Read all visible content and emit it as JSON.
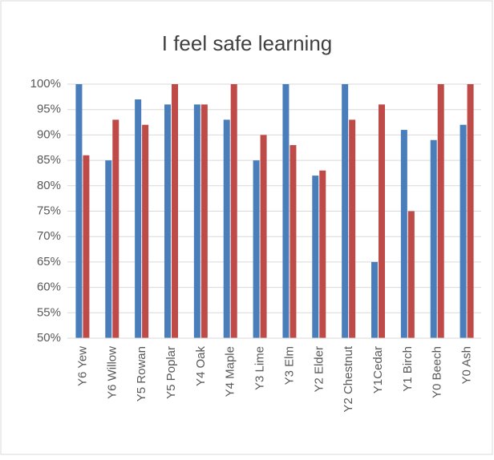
{
  "chart_data": {
    "type": "bar",
    "title": "I feel safe learning",
    "categories": [
      "Y6 Yew",
      "Y6 Willow",
      "Y5 Rowan",
      "Y5 Poplar",
      "Y4 Oak",
      "Y4 Maple",
      "Y3 Lime",
      "Y3 Elm",
      "Y2 Elder",
      "Y2 Chestnut",
      "Y1Cedar",
      "Y1 Birch",
      "Y0 Beech",
      "Y0 Ash"
    ],
    "series": [
      {
        "color": "#4a7ebb",
        "values": [
          100,
          85,
          97,
          96,
          96,
          93,
          85,
          100,
          82,
          100,
          65,
          91,
          89,
          92
        ]
      },
      {
        "color": "#be4b48",
        "values": [
          86,
          93,
          92,
          100,
          96,
          100,
          90,
          88,
          83,
          93,
          96,
          75,
          100,
          100
        ]
      }
    ],
    "ylim": [
      50,
      100
    ],
    "yticks": [
      {
        "value": 50,
        "label": "50%"
      },
      {
        "value": 55,
        "label": "55%"
      },
      {
        "value": 60,
        "label": "60%"
      },
      {
        "value": 65,
        "label": "65%"
      },
      {
        "value": 70,
        "label": "70%"
      },
      {
        "value": 75,
        "label": "75%"
      },
      {
        "value": 80,
        "label": "80%"
      },
      {
        "value": 85,
        "label": "85%"
      },
      {
        "value": 90,
        "label": "90%"
      },
      {
        "value": 95,
        "label": "95%"
      },
      {
        "value": 100,
        "label": "100%"
      }
    ],
    "grid": true
  }
}
